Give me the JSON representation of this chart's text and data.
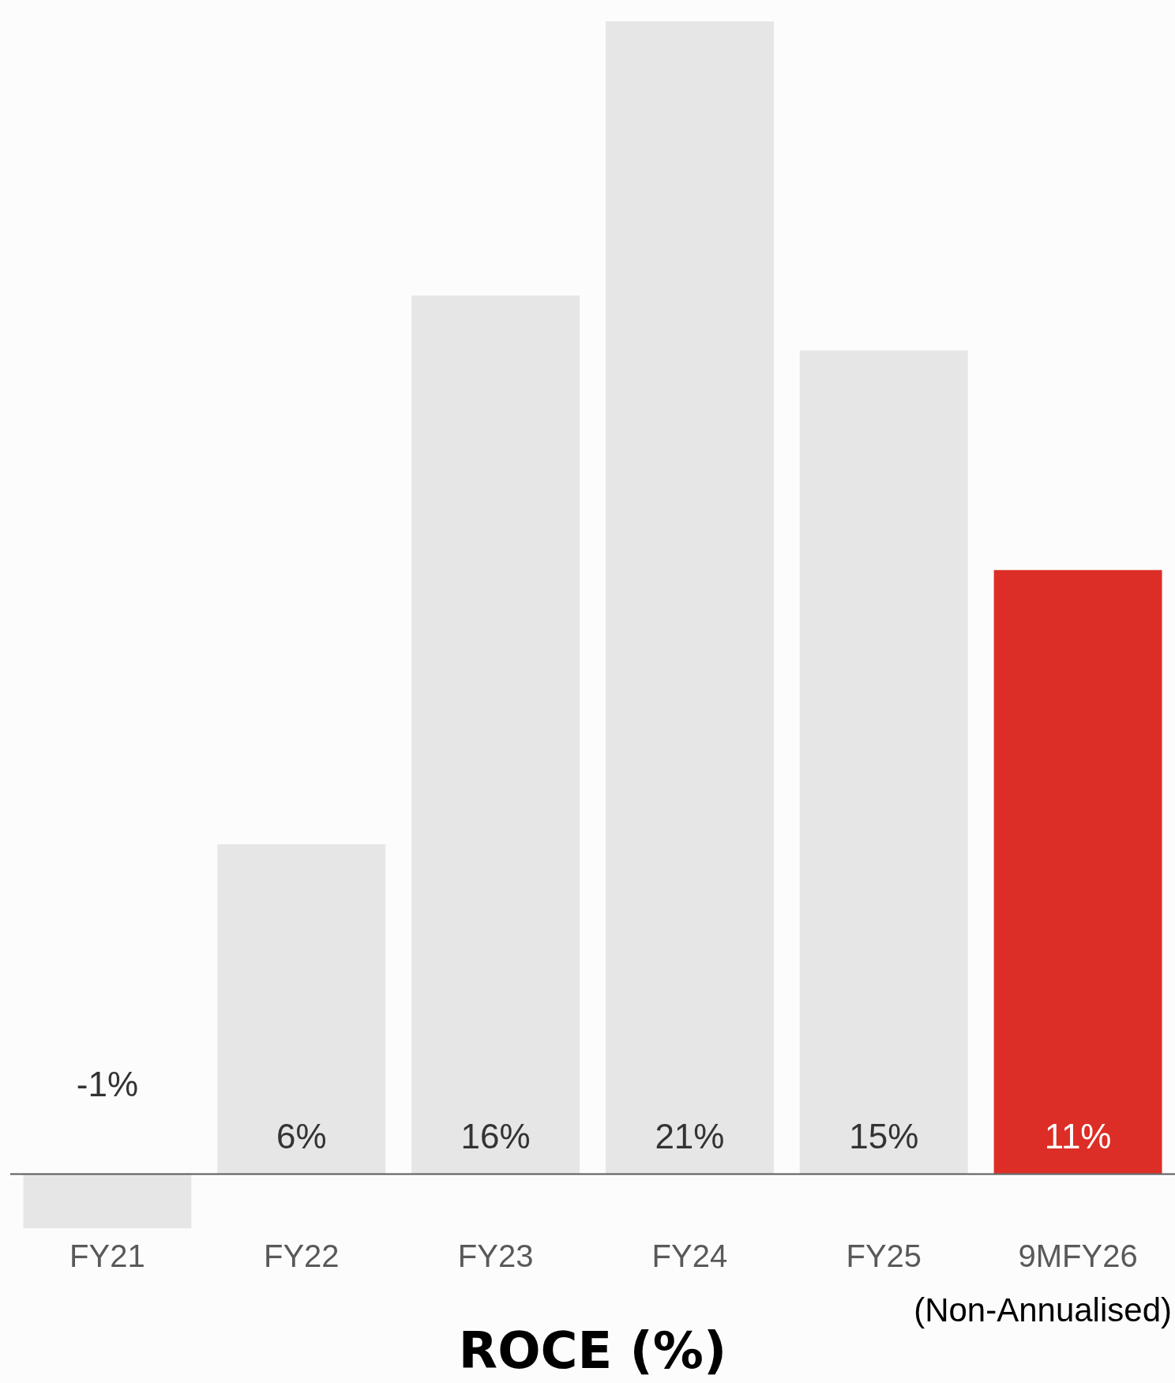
{
  "chart_data": {
    "type": "bar",
    "title": "ROCE (%)",
    "categories": [
      "FY21",
      "FY22",
      "FY23",
      "FY24",
      "FY25",
      "9MFY26"
    ],
    "values": [
      -1,
      6,
      16,
      21,
      15,
      11
    ],
    "colors": [
      "#e6e6e6",
      "#e6e6e6",
      "#e6e6e6",
      "#e6e6e6",
      "#e6e6e6",
      "#dc2e26"
    ],
    "value_labels": [
      "-1%",
      "6%",
      "16%",
      "21%",
      "15%",
      "11%"
    ],
    "annotations": [
      "(Non-Annualised)"
    ],
    "grid": false,
    "legend": false
  }
}
